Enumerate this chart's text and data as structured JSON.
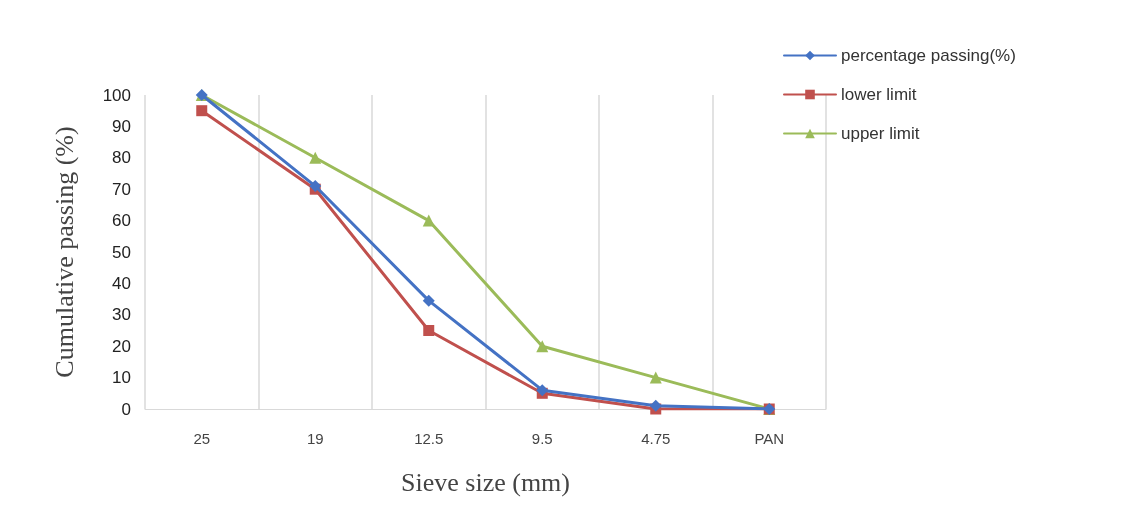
{
  "chart_data": {
    "type": "line",
    "xlabel": "Sieve size (mm)",
    "ylabel": "Cumulative passing (%)",
    "categories": [
      "25",
      "19",
      "12.5",
      "9.5",
      "4.75",
      "PAN"
    ],
    "series": [
      {
        "name": "percentage passing(%)",
        "color": "#4472c4",
        "marker": "diamond",
        "values": [
          100,
          71,
          34.5,
          6,
          1,
          0
        ]
      },
      {
        "name": "lower limit",
        "color": "#c0504d",
        "marker": "square",
        "values": [
          95,
          70,
          25,
          5,
          0,
          0
        ]
      },
      {
        "name": "upper limit",
        "color": "#9bbb59",
        "marker": "triangle",
        "values": [
          100,
          80,
          60,
          20,
          10,
          0
        ]
      }
    ],
    "ylim": [
      0,
      100
    ],
    "yticks": [
      0,
      10,
      20,
      30,
      40,
      50,
      60,
      70,
      80,
      90,
      100
    ],
    "grid": "x",
    "legend": "top right",
    "line_style": "solid"
  }
}
